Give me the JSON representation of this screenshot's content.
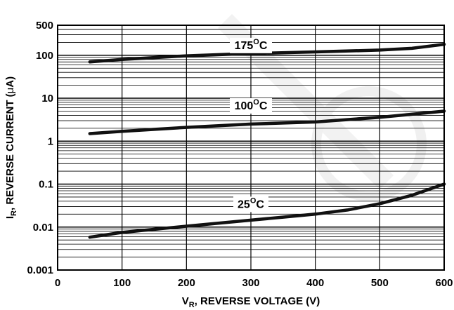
{
  "chart_data": {
    "type": "line",
    "title": "",
    "xlabel": {
      "main": "V",
      "sub": "R",
      "rest": ", REVERSE VOLTAGE (V)"
    },
    "ylabel": {
      "main": "I",
      "sub": "R",
      "rest": ", REVERSE CURRENT (",
      "mu": "μ",
      "tail": "A)"
    },
    "x_ticks": [
      "0",
      "100",
      "200",
      "300",
      "400",
      "500",
      "600"
    ],
    "y_ticks": [
      "0.001",
      "0.01",
      "0.1",
      "1",
      "10",
      "100",
      "500"
    ],
    "xlim": [
      0,
      600
    ],
    "ylim": [
      0.001,
      500
    ],
    "y_scale": "log",
    "grid": true,
    "series": [
      {
        "name": "175",
        "label": {
          "value": "175",
          "sup": "O",
          "unit": "C",
          "at": [
            300,
            140
          ]
        },
        "x": [
          50,
          100,
          200,
          300,
          400,
          500,
          550,
          600
        ],
        "y": [
          70,
          80,
          97,
          110,
          120,
          132,
          145,
          180
        ]
      },
      {
        "name": "100",
        "label": {
          "value": "100",
          "sup": "O",
          "unit": "C",
          "at": [
            300,
            5.5
          ]
        },
        "x": [
          50,
          100,
          200,
          300,
          400,
          500,
          600
        ],
        "y": [
          1.5,
          1.7,
          2.1,
          2.5,
          2.8,
          3.6,
          5.0
        ]
      },
      {
        "name": "25",
        "label": {
          "value": "25",
          "sup": "O",
          "unit": "C",
          "at": [
            300,
            0.028
          ]
        },
        "x": [
          50,
          100,
          200,
          300,
          350,
          400,
          450,
          500,
          550,
          600
        ],
        "y": [
          0.0058,
          0.0075,
          0.0105,
          0.0145,
          0.017,
          0.02,
          0.025,
          0.035,
          0.055,
          0.1
        ]
      }
    ]
  }
}
